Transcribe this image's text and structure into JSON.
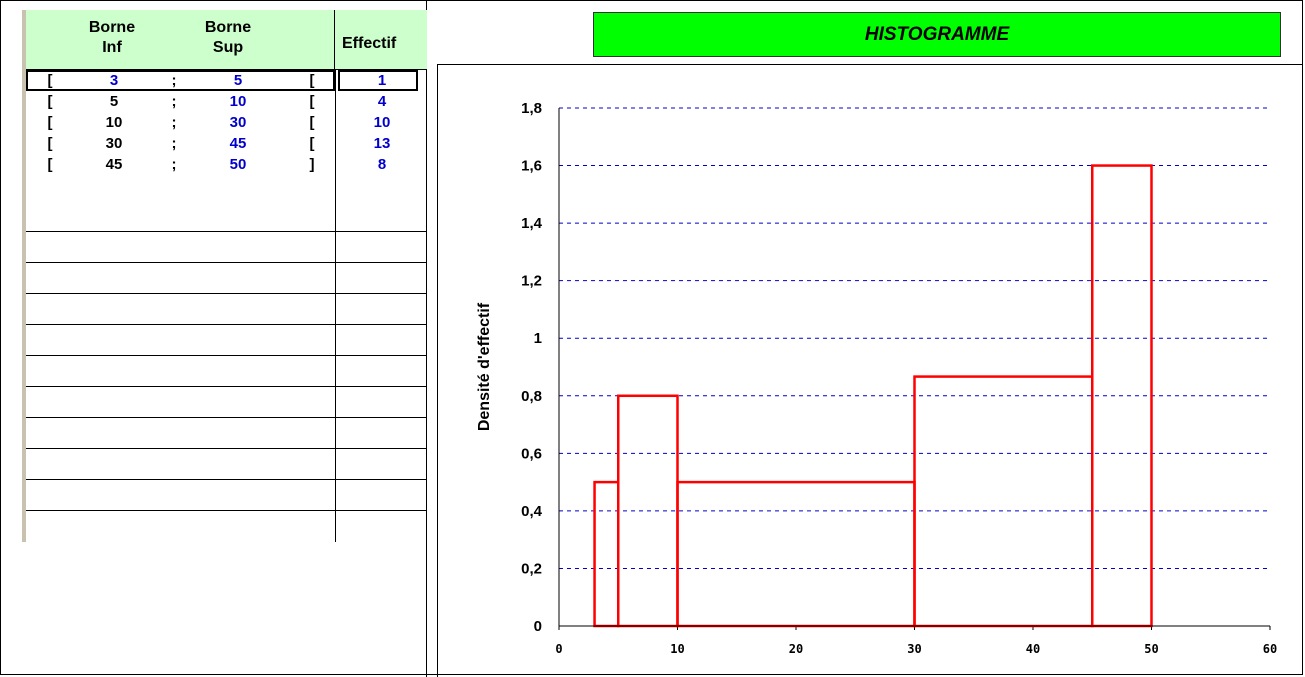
{
  "table": {
    "headers": {
      "borne_inf": [
        "Borne",
        "Inf"
      ],
      "borne_sup": [
        "Borne",
        "Sup"
      ],
      "effectif": "Effectif"
    },
    "rows": [
      {
        "open": "[",
        "inf": "3",
        "sep": ";",
        "sup": "5",
        "close": "[",
        "effectif": "1"
      },
      {
        "open": "[",
        "inf": "5",
        "sep": ";",
        "sup": "10",
        "close": "[",
        "effectif": "4"
      },
      {
        "open": "[",
        "inf": "10",
        "sep": ";",
        "sup": "30",
        "close": "[",
        "effectif": "10"
      },
      {
        "open": "[",
        "inf": "30",
        "sep": ";",
        "sup": "45",
        "close": "[",
        "effectif": "13"
      },
      {
        "open": "[",
        "inf": "45",
        "sep": ";",
        "sup": "50",
        "close": "]",
        "effectif": "8"
      }
    ]
  },
  "colors": {
    "header_bg": "#ccffcc",
    "title_bg": "#00ff00",
    "bar_stroke": "#ff0000",
    "grid": "#0000cc",
    "value_blue": "#0000cc"
  },
  "chart_data": {
    "type": "histogram",
    "title": "HISTOGRAMME",
    "ylabel": "Densité d'effectif",
    "xlabel": "",
    "xlim": [
      0,
      60
    ],
    "ylim": [
      0,
      1.8
    ],
    "grid": true,
    "x_ticks": [
      "0",
      "10",
      "20",
      "30",
      "40",
      "50",
      "60"
    ],
    "y_ticks": [
      "0",
      "0,2",
      "0,4",
      "0,6",
      "0,8",
      "1",
      "1,2",
      "1,4",
      "1,6",
      "1,8"
    ],
    "bins": [
      {
        "from": 3,
        "to": 5,
        "density": 0.5
      },
      {
        "from": 5,
        "to": 10,
        "density": 0.8
      },
      {
        "from": 10,
        "to": 30,
        "density": 0.5
      },
      {
        "from": 30,
        "to": 45,
        "density": 0.8667
      },
      {
        "from": 45,
        "to": 50,
        "density": 1.6
      }
    ]
  }
}
